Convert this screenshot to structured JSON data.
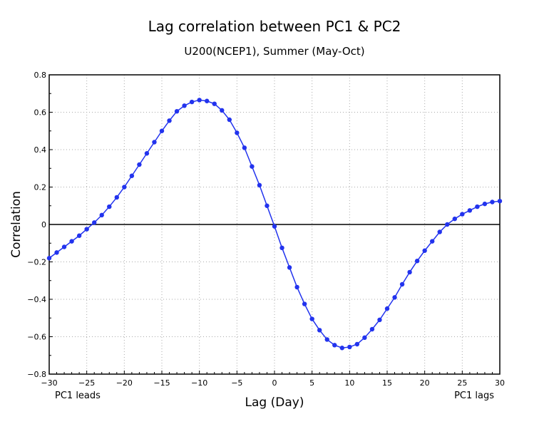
{
  "chart_data": {
    "type": "line",
    "title": "Lag correlation between PC1 & PC2",
    "subtitle": "U200(NCEP1), Summer (May-Oct)",
    "xlabel": "Lag (Day)",
    "ylabel": "Correlation",
    "xlim": [
      -30,
      30
    ],
    "ylim": [
      -0.8,
      0.8
    ],
    "x_ticks": [
      -30,
      -25,
      -20,
      -15,
      -10,
      -5,
      0,
      5,
      10,
      15,
      20,
      25,
      30
    ],
    "x_tick_labels": [
      "−30",
      "−25",
      "−20",
      "−15",
      "−10",
      "−5",
      "0",
      "5",
      "10",
      "15",
      "20",
      "25",
      "30"
    ],
    "y_ticks": [
      -0.8,
      -0.6,
      -0.4,
      -0.2,
      0,
      0.2,
      0.4,
      0.6,
      0.8
    ],
    "y_tick_labels": [
      "−0.8",
      "−0.6",
      "−0.4",
      "−0.2",
      "0",
      "0.2",
      "0.4",
      "0.6",
      "0.8"
    ],
    "grid": true,
    "zero_line": true,
    "left_note": "PC1 leads",
    "right_note": "PC1 lags",
    "series": [
      {
        "name": "Lag correlation",
        "color": "#2233ee",
        "x": [
          -30,
          -29,
          -28,
          -27,
          -26,
          -25,
          -24,
          -23,
          -22,
          -21,
          -20,
          -19,
          -18,
          -17,
          -16,
          -15,
          -14,
          -13,
          -12,
          -11,
          -10,
          -9,
          -8,
          -7,
          -6,
          -5,
          -4,
          -3,
          -2,
          -1,
          0,
          1,
          2,
          3,
          4,
          5,
          6,
          7,
          8,
          9,
          10,
          11,
          12,
          13,
          14,
          15,
          16,
          17,
          18,
          19,
          20,
          21,
          22,
          23,
          24,
          25,
          26,
          27,
          28,
          29,
          30
        ],
        "values": [
          -0.18,
          -0.15,
          -0.12,
          -0.09,
          -0.06,
          -0.025,
          0.01,
          0.05,
          0.095,
          0.145,
          0.2,
          0.26,
          0.32,
          0.38,
          0.44,
          0.5,
          0.555,
          0.605,
          0.635,
          0.655,
          0.665,
          0.66,
          0.645,
          0.61,
          0.56,
          0.49,
          0.41,
          0.31,
          0.21,
          0.1,
          -0.01,
          -0.125,
          -0.23,
          -0.335,
          -0.425,
          -0.505,
          -0.565,
          -0.615,
          -0.645,
          -0.66,
          -0.655,
          -0.64,
          -0.605,
          -0.56,
          -0.51,
          -0.45,
          -0.39,
          -0.32,
          -0.255,
          -0.195,
          -0.14,
          -0.09,
          -0.04,
          0.0,
          0.03,
          0.055,
          0.075,
          0.095,
          0.11,
          0.12,
          0.125
        ]
      }
    ]
  }
}
